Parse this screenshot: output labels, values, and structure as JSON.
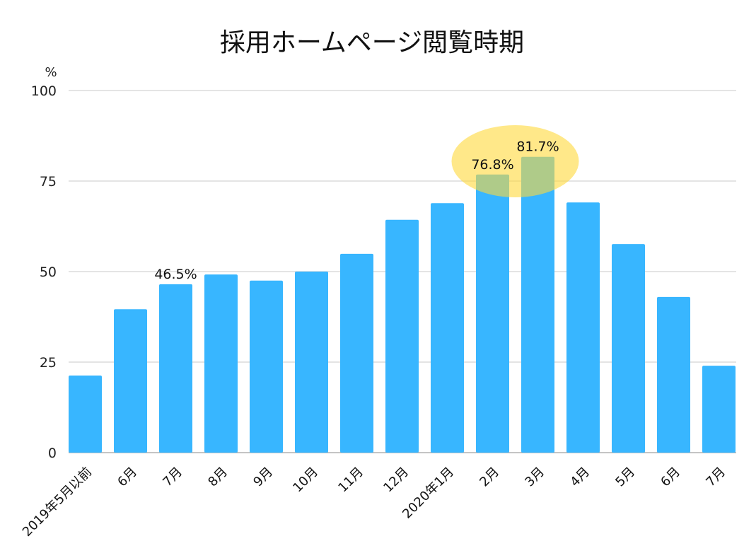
{
  "chart_data": {
    "type": "bar",
    "title": "採用ホームページ閲覧時期",
    "ylabel": "%",
    "xlabel": "",
    "ylim": [
      0,
      100
    ],
    "yticks": [
      0,
      25,
      50,
      75,
      100
    ],
    "grid": true,
    "categories": [
      "2019年5月以前",
      "6月",
      "7月",
      "8月",
      "9月",
      "10月",
      "11月",
      "12月",
      "2020年1月",
      "2月",
      "3月",
      "4月",
      "5月",
      "6月",
      "7月"
    ],
    "values": [
      21.3,
      39.6,
      46.5,
      49.2,
      47.5,
      50.0,
      54.9,
      64.3,
      68.9,
      76.8,
      81.7,
      69.1,
      57.6,
      43.0,
      24.0
    ],
    "data_labels": {
      "2": "46.5%",
      "9": "76.8%",
      "10": "81.7%"
    },
    "highlight": {
      "indices": [
        9,
        10
      ],
      "color": "#ffd83a"
    },
    "bar_color": "#38b6ff"
  }
}
